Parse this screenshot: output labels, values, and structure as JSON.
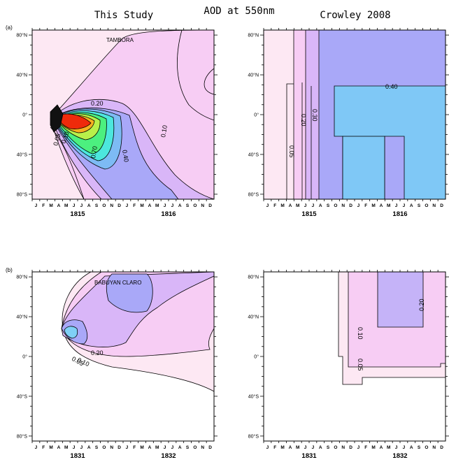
{
  "figure": {
    "title": "AOD at 550nm",
    "col_left": "This Study",
    "col_right": "Crowley 2008"
  },
  "chart_data": [
    {
      "type": "heatmap",
      "panel": "(a)",
      "label": "TAMBORA",
      "years": [
        "1815",
        "1816"
      ],
      "months": [
        "J",
        "F",
        "M",
        "A",
        "M",
        "J",
        "J",
        "A",
        "S",
        "O",
        "N",
        "D"
      ],
      "yticks": [
        "80°N",
        "40°N",
        "0°",
        "40°S",
        "80°S"
      ],
      "ylim": [
        -85,
        85
      ],
      "contour_labels": [
        "0.20",
        "0.10",
        "0.05",
        "0.10",
        "0.70",
        "0.40"
      ],
      "contour_levels": [
        0.05,
        0.1,
        0.2,
        0.3,
        0.4,
        0.5,
        0.6,
        0.7,
        0.8,
        0.9
      ],
      "colors": [
        "#fde8f3",
        "#f7cdf4",
        "#d9b6f8",
        "#a9a8f8",
        "#7dbbf4",
        "#4ce7dd",
        "#4cf07f",
        "#b8f04a",
        "#f5b020",
        "#ef2a0b"
      ]
    },
    {
      "type": "heatmap",
      "panel": "",
      "label": "",
      "years": [
        "1815",
        "1816"
      ],
      "months": [
        "J",
        "F",
        "M",
        "A",
        "M",
        "J",
        "J",
        "A",
        "S",
        "O",
        "N",
        "D"
      ],
      "yticks": [
        "80°N",
        "40°N",
        "0°",
        "40°S",
        "80°S"
      ],
      "ylim": [
        -85,
        85
      ],
      "contour_labels": [
        "0.40",
        "0.20",
        "0.30",
        "0.05"
      ],
      "contour_levels": [
        0.05,
        0.1,
        0.2,
        0.3,
        0.4
      ]
    },
    {
      "type": "heatmap",
      "panel": "(b)",
      "label": "BABUYAN CLARO",
      "years": [
        "1831",
        "1832"
      ],
      "months": [
        "J",
        "F",
        "M",
        "A",
        "M",
        "J",
        "J",
        "A",
        "S",
        "O",
        "N",
        "D"
      ],
      "yticks": [
        "80°N",
        "40°N",
        "0°",
        "40°S",
        "80°S"
      ],
      "ylim": [
        -85,
        85
      ],
      "contour_labels": [
        "0.20",
        "0.10",
        "0.05"
      ],
      "contour_levels": [
        0.05,
        0.1,
        0.2,
        0.3,
        0.4
      ]
    },
    {
      "type": "heatmap",
      "panel": "",
      "label": "",
      "years": [
        "1831",
        "1832"
      ],
      "months": [
        "J",
        "F",
        "M",
        "A",
        "M",
        "J",
        "J",
        "A",
        "S",
        "O",
        "N",
        "D"
      ],
      "yticks": [
        "80°N",
        "40°N",
        "0°",
        "40°S",
        "80°S"
      ],
      "ylim": [
        -85,
        85
      ],
      "contour_labels": [
        "0.20",
        "0.10",
        "0.05"
      ],
      "contour_levels": [
        0.05,
        0.1,
        0.2
      ]
    }
  ]
}
